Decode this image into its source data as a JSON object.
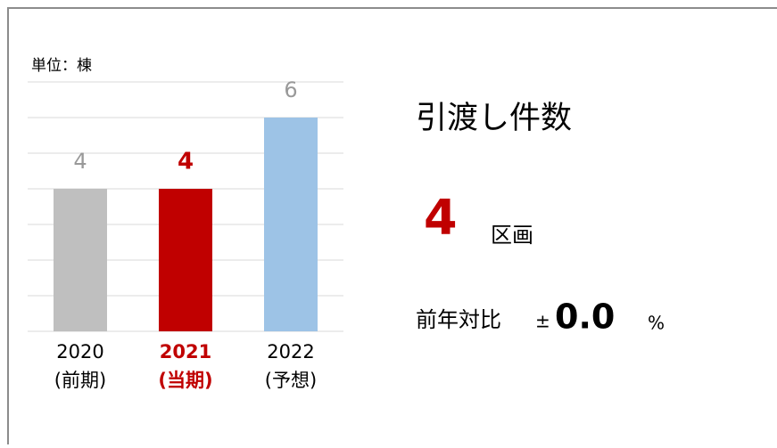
{
  "unit_label": "単位：棟",
  "chart_data": {
    "type": "bar",
    "categories": [
      "2020",
      "2021",
      "2022"
    ],
    "periods": [
      "(前期)",
      "(当期)",
      "(予想)"
    ],
    "values": [
      4,
      4,
      6
    ],
    "colors": [
      "#bfbfbf",
      "#c00000",
      "#9dc3e6"
    ],
    "label_colors": [
      "#999999",
      "#c00000",
      "#999999"
    ],
    "highlight": 1,
    "ylim": [
      0,
      7
    ],
    "yticks": [
      0,
      1,
      2,
      3,
      4,
      5,
      6,
      7
    ],
    "grid": true
  },
  "summary": {
    "title": "引渡し件数",
    "value": 4,
    "unit": "区画",
    "yoy_label": "前年対比",
    "yoy_sign": "±",
    "yoy_value": "0.0",
    "yoy_unit": "%"
  }
}
